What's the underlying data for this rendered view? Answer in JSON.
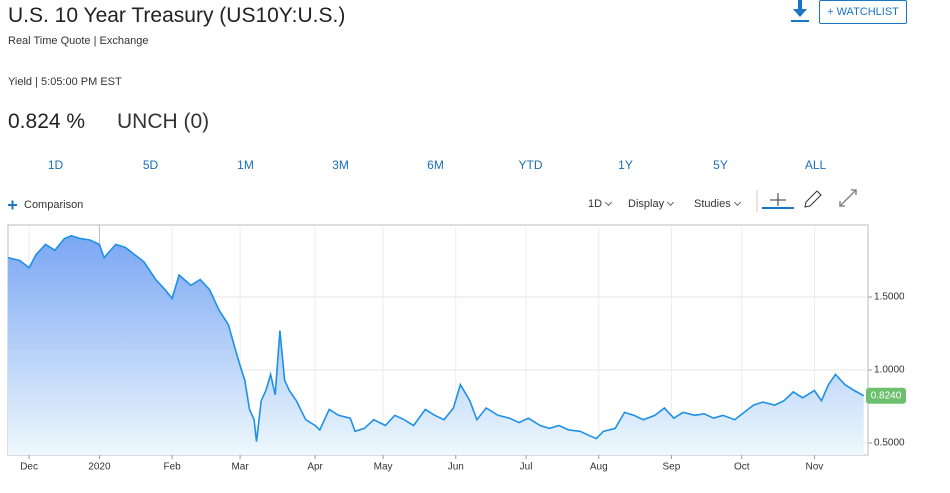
{
  "header": {
    "title": "U.S. 10 Year Treasury (US10Y:U.S.)",
    "subtitle": "Real Time Quote | Exchange"
  },
  "quote": {
    "label": "Yield | 5:05:00 PM EST",
    "last": "0.824 %",
    "change": "UNCH (0)"
  },
  "buttons": {
    "watchlist": "+ WATCHLIST"
  },
  "ranges": [
    "1D",
    "5D",
    "1M",
    "3M",
    "6M",
    "YTD",
    "1Y",
    "5Y",
    "ALL"
  ],
  "toolbar": {
    "comparison": "Comparison",
    "interval": "1D",
    "display": "Display",
    "studies": "Studies"
  },
  "chart_data": {
    "type": "area",
    "x": [
      0,
      5,
      9,
      12,
      16,
      20,
      24,
      27,
      31,
      35,
      39,
      41,
      46,
      50,
      54,
      58,
      63,
      67,
      70,
      73,
      78,
      82,
      86,
      90,
      94,
      97,
      99,
      101,
      103,
      105,
      106,
      108,
      110,
      112,
      114,
      116,
      118,
      120,
      123,
      127,
      131,
      133,
      137,
      141,
      146,
      148,
      152,
      156,
      161,
      165,
      169,
      173,
      178,
      182,
      186,
      190,
      193,
      197,
      200,
      204,
      209,
      214,
      218,
      222,
      227,
      231,
      235,
      239,
      244,
      248,
      251,
      254,
      259,
      263,
      267,
      271,
      276,
      280,
      284,
      288,
      293,
      297,
      301,
      305,
      310,
      314,
      318,
      322,
      327,
      331,
      335,
      339,
      344,
      347,
      350,
      353,
      357,
      361,
      365
    ],
    "series": [
      {
        "color": "#1e90e6",
        "values": [
          1.77,
          1.75,
          1.7,
          1.79,
          1.86,
          1.82,
          1.9,
          1.92,
          1.9,
          1.89,
          1.86,
          1.77,
          1.86,
          1.84,
          1.79,
          1.74,
          1.62,
          1.55,
          1.49,
          1.65,
          1.58,
          1.62,
          1.55,
          1.41,
          1.31,
          1.14,
          1.03,
          0.93,
          0.73,
          0.66,
          0.51,
          0.79,
          0.86,
          0.97,
          0.83,
          1.27,
          0.93,
          0.86,
          0.79,
          0.66,
          0.62,
          0.59,
          0.73,
          0.69,
          0.67,
          0.58,
          0.6,
          0.66,
          0.62,
          0.69,
          0.66,
          0.62,
          0.73,
          0.69,
          0.66,
          0.74,
          0.9,
          0.79,
          0.66,
          0.74,
          0.69,
          0.67,
          0.64,
          0.67,
          0.62,
          0.6,
          0.62,
          0.59,
          0.58,
          0.55,
          0.53,
          0.58,
          0.6,
          0.71,
          0.69,
          0.66,
          0.69,
          0.74,
          0.67,
          0.71,
          0.69,
          0.7,
          0.67,
          0.69,
          0.66,
          0.71,
          0.76,
          0.78,
          0.76,
          0.79,
          0.85,
          0.81,
          0.86,
          0.79,
          0.9,
          0.97,
          0.9,
          0.86,
          0.824
        ]
      }
    ],
    "last_price": {
      "value": 0.824,
      "label": "0.8240",
      "color": "#6cbf6c"
    },
    "xlim": [
      0,
      366
    ],
    "xticks": [
      {
        "value": 9,
        "label": "Dec"
      },
      {
        "value": 39,
        "label": "2020"
      },
      {
        "value": 70,
        "label": "Feb"
      },
      {
        "value": 99,
        "label": "Mar"
      },
      {
        "value": 131,
        "label": "Apr"
      },
      {
        "value": 160,
        "label": "May"
      },
      {
        "value": 191,
        "label": "Jun"
      },
      {
        "value": 221,
        "label": "Jul"
      },
      {
        "value": 252,
        "label": "Aug"
      },
      {
        "value": 283,
        "label": "Sep"
      },
      {
        "value": 313,
        "label": "Oct"
      },
      {
        "value": 344,
        "label": "Nov"
      }
    ],
    "ylim": [
      0.418,
      1.993
    ],
    "yticks": [
      {
        "value": 0.5,
        "label": "0.5000"
      },
      {
        "value": 1.0,
        "label": "1.0000"
      },
      {
        "value": 1.5,
        "label": "1.5000"
      }
    ],
    "grid": true
  }
}
